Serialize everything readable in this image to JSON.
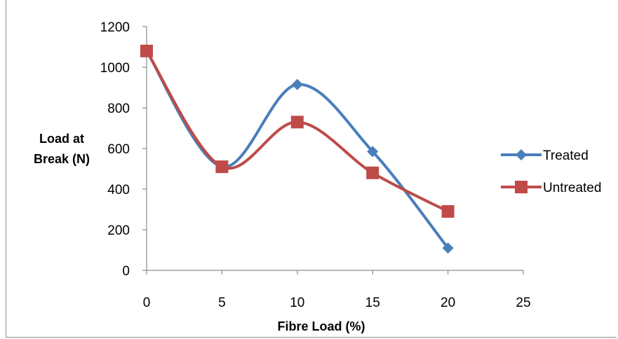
{
  "chart_data": {
    "type": "line",
    "smoothed": true,
    "title": "",
    "xlabel": "Fibre Load (%)",
    "ylabel_lines": [
      "Load at",
      "Break (N)"
    ],
    "xlim": [
      0,
      25
    ],
    "ylim": [
      0,
      1200
    ],
    "xticks": [
      0,
      5,
      10,
      15,
      20,
      25
    ],
    "yticks": [
      0,
      200,
      400,
      600,
      800,
      1000,
      1200
    ],
    "grid": false,
    "legend_position": "right",
    "series": [
      {
        "name": "Treated",
        "color": "#4a7ebb",
        "marker": "diamond",
        "x": [
          0,
          5,
          10,
          15,
          20
        ],
        "y": [
          1080,
          510,
          915,
          585,
          110
        ]
      },
      {
        "name": "Untreated",
        "color": "#be4b48",
        "marker": "square",
        "x": [
          0,
          5,
          10,
          15,
          20
        ],
        "y": [
          1080,
          510,
          730,
          480,
          290
        ]
      }
    ]
  }
}
